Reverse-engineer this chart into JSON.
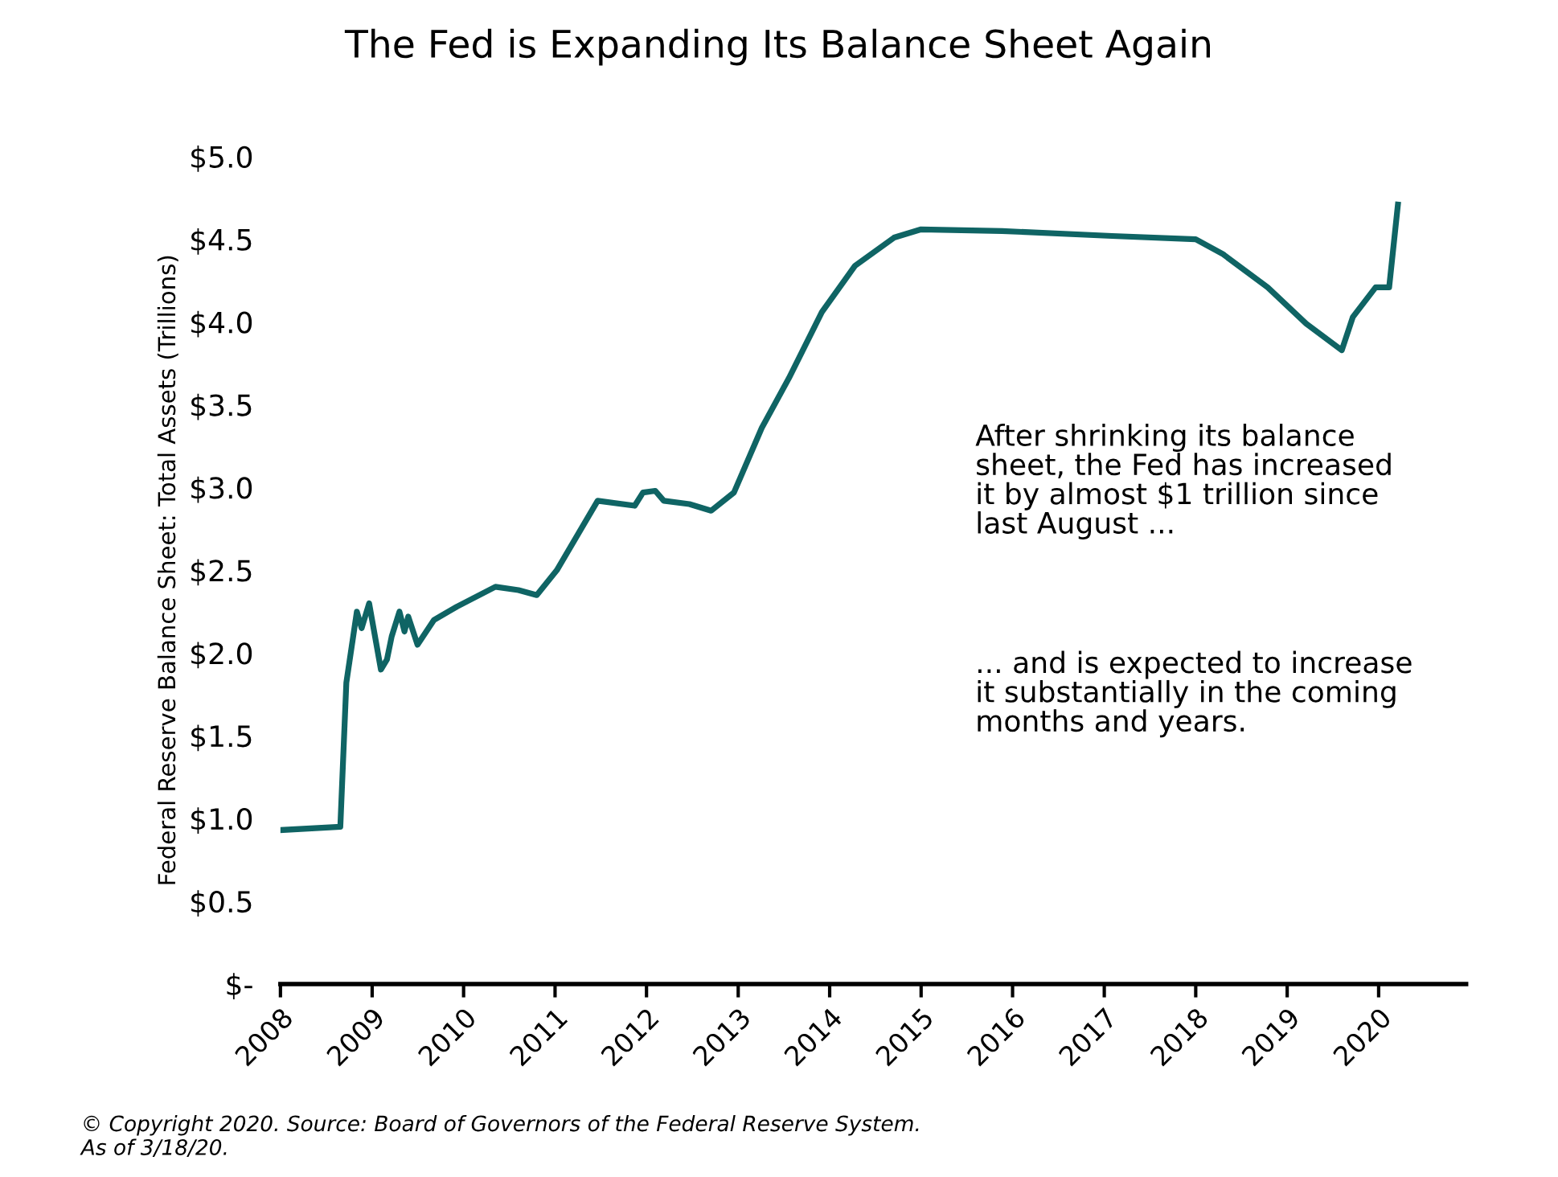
{
  "chart_data": {
    "type": "line",
    "title": "The Fed is Expanding Its Balance Sheet Again",
    "ylabel": "Federal Reserve Balance Sheet: Total Assets (Trillions)",
    "x": [
      "2008-01-02",
      "2008-08-27",
      "2008-09-20",
      "2008-11-01",
      "2008-11-20",
      "2008-12-20",
      "2009-02-05",
      "2009-03-01",
      "2009-03-20",
      "2009-04-20",
      "2009-05-10",
      "2009-05-25",
      "2009-07-01",
      "2009-09-05",
      "2009-12-05",
      "2010-05-08",
      "2010-08-08",
      "2010-10-20",
      "2011-01-08",
      "2011-06-20",
      "2011-11-15",
      "2011-12-18",
      "2012-02-05",
      "2012-03-10",
      "2012-06-20",
      "2012-09-15",
      "2012-12-15",
      "2013-04-05",
      "2013-07-22",
      "2013-12-01",
      "2014-04-12",
      "2014-09-15",
      "2015-01-01",
      "2015-11-20",
      "2017-02-01",
      "2018-01-01",
      "2018-04-20",
      "2018-10-15",
      "2019-03-18",
      "2019-08-07",
      "2019-09-20",
      "2019-12-20",
      "2020-02-12",
      "2020-03-18"
    ],
    "series": [
      {
        "color": "#0f6464",
        "values": [
          0.93,
          0.95,
          1.82,
          2.25,
          2.15,
          2.3,
          1.9,
          1.96,
          2.1,
          2.25,
          2.13,
          2.22,
          2.05,
          2.2,
          2.28,
          2.4,
          2.38,
          2.35,
          2.5,
          2.92,
          2.89,
          2.97,
          2.98,
          2.92,
          2.9,
          2.86,
          2.97,
          3.36,
          3.66,
          4.06,
          4.34,
          4.51,
          4.56,
          4.55,
          4.52,
          4.5,
          4.41,
          4.21,
          3.99,
          3.83,
          4.03,
          4.21,
          4.21,
          4.71
        ]
      }
    ],
    "xlim": [
      "2008",
      "2020-12-15"
    ],
    "xticks": [
      "2008",
      "2009",
      "2010",
      "2011",
      "2012",
      "2013",
      "2014",
      "2015",
      "2016",
      "2017",
      "2018",
      "2019",
      "2020"
    ],
    "ylim": [
      0,
      5
    ],
    "yticks": [
      {
        "value": 0,
        "label": "$-"
      },
      {
        "value": 0.5,
        "label": "$0.5"
      },
      {
        "value": 1,
        "label": "$1.0"
      },
      {
        "value": 1.5,
        "label": "$1.5"
      },
      {
        "value": 2,
        "label": "$2.0"
      },
      {
        "value": 2.5,
        "label": "$2.5"
      },
      {
        "value": 3,
        "label": "$3.0"
      },
      {
        "value": 3.5,
        "label": "$3.5"
      },
      {
        "value": 4,
        "label": "$4.0"
      },
      {
        "value": 4.5,
        "label": "$4.5"
      },
      {
        "value": 5,
        "label": "$5.0"
      }
    ],
    "grid": false,
    "annotations": [
      "After shrinking its balance\nsheet, the Fed has increased\nit by almost $1 trillion since\nlast August ...",
      "... and is expected to increase\nit substantially in the coming\nmonths and years.",
      "© Copyright 2020. Source: Board of Governors of the Federal Reserve System.\nAs of 3/18/20."
    ]
  }
}
